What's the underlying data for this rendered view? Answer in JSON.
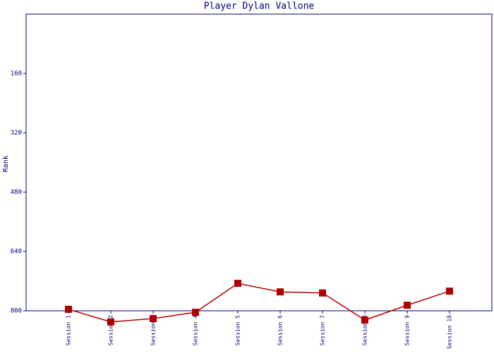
{
  "chart_data": {
    "type": "line",
    "title": "Player Dylan Vallone",
    "y_label": "Rank",
    "categories": [
      "Session 1",
      "Session 2",
      "Session 3",
      "Session 4",
      "Session 5",
      "Session 6",
      "Session 7",
      "Session 8",
      "Session 9",
      "Session 10"
    ],
    "series": [
      {
        "name": "Rank",
        "color": "#b00000",
        "values": [
          796,
          830,
          821,
          804,
          726,
          749,
          752,
          825,
          785,
          747
        ]
      }
    ],
    "ylim": [
      0,
      800
    ],
    "y_inverted": true,
    "yticks": [
      160,
      320,
      480,
      640,
      800
    ]
  }
}
